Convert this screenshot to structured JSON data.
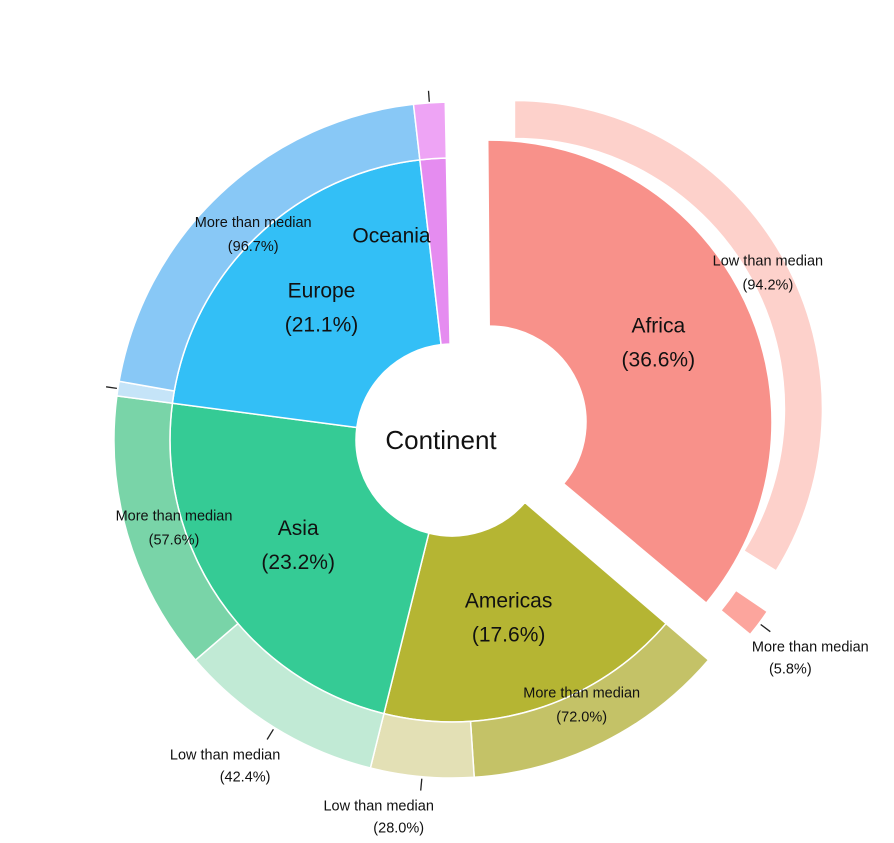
{
  "chart_data": {
    "type": "pie",
    "center_label": "Continent",
    "inner": [
      {
        "name": "Africa",
        "pct_label": "(36.6%)",
        "value": 36.6,
        "color": "#f8918a",
        "exploded": true
      },
      {
        "name": "Americas",
        "pct_label": "(17.6%)",
        "value": 17.6,
        "color": "#b5b533",
        "exploded": false
      },
      {
        "name": "Asia",
        "pct_label": "(23.2%)",
        "value": 23.2,
        "color": "#35cb95",
        "exploded": false
      },
      {
        "name": "Europe",
        "pct_label": "(21.1%)",
        "value": 21.1,
        "color": "#33bff6",
        "exploded": false
      },
      {
        "name": "Oceania",
        "pct_label": "",
        "value": 1.5,
        "color": "#e58cf0",
        "exploded": false
      }
    ],
    "outer": [
      {
        "parent": "Africa",
        "name": "Low than median",
        "pct_label": "(94.2%)",
        "fraction": 94.2,
        "color": "#fdd1cb"
      },
      {
        "parent": "Africa",
        "name": "More than median",
        "pct_label": "(5.8%)",
        "fraction": 5.8,
        "color": "#fca59d"
      },
      {
        "parent": "Americas",
        "name": "More than median",
        "pct_label": "(72.0%)",
        "fraction": 72.0,
        "color": "#c4c267"
      },
      {
        "parent": "Americas",
        "name": "Low than median",
        "pct_label": "(28.0%)",
        "fraction": 28.0,
        "color": "#e3e0b5"
      },
      {
        "parent": "Asia",
        "name": "Low than median",
        "pct_label": "(42.4%)",
        "fraction": 42.4,
        "color": "#c1ead5"
      },
      {
        "parent": "Asia",
        "name": "More than median",
        "pct_label": "(57.6%)",
        "fraction": 57.6,
        "color": "#79d4a8"
      },
      {
        "parent": "Europe",
        "name": "Low than median",
        "pct_label": "",
        "fraction": 3.3,
        "color": "#c5e4f8"
      },
      {
        "parent": "Europe",
        "name": "More than median",
        "pct_label": "(96.7%)",
        "fraction": 96.7,
        "color": "#88c8f6"
      },
      {
        "parent": "Oceania",
        "name": "",
        "pct_label": "",
        "fraction": 100,
        "color": "#eea4f5"
      }
    ]
  }
}
